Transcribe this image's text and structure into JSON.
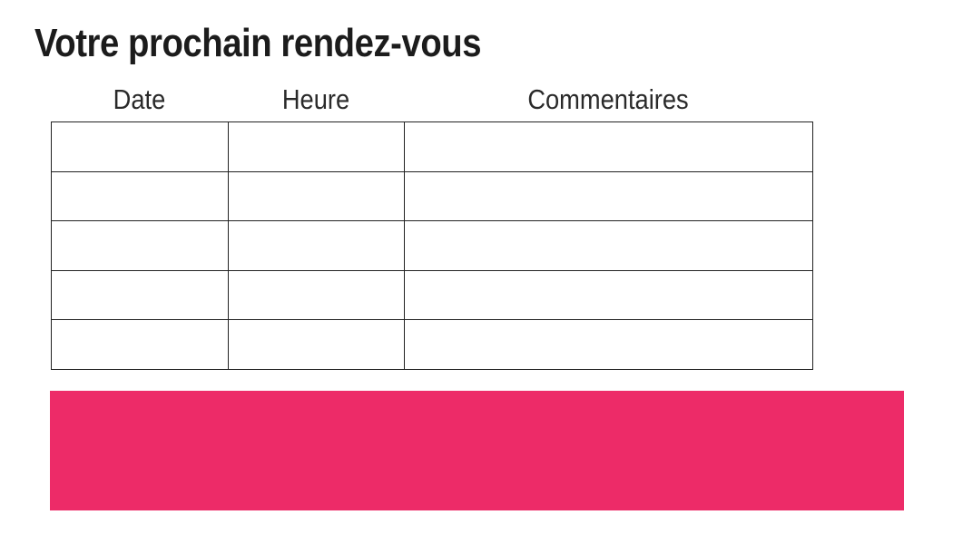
{
  "page": {
    "title": "Votre prochain rendez-vous"
  },
  "table": {
    "columns": [
      {
        "label": "Date"
      },
      {
        "label": "Heure"
      },
      {
        "label": "Commentaires"
      }
    ],
    "rows": [
      [
        "",
        "",
        ""
      ],
      [
        "",
        "",
        ""
      ],
      [
        "",
        "",
        ""
      ],
      [
        "",
        "",
        ""
      ],
      [
        "",
        "",
        ""
      ]
    ],
    "border_color": "#222222"
  },
  "banner": {
    "label": "",
    "color": "#ED2B68"
  },
  "colors": {
    "background": "#ffffff",
    "title_text": "#1c1c1c",
    "header_text": "#2a2a2a",
    "accent_pink": "#ED2B68"
  }
}
